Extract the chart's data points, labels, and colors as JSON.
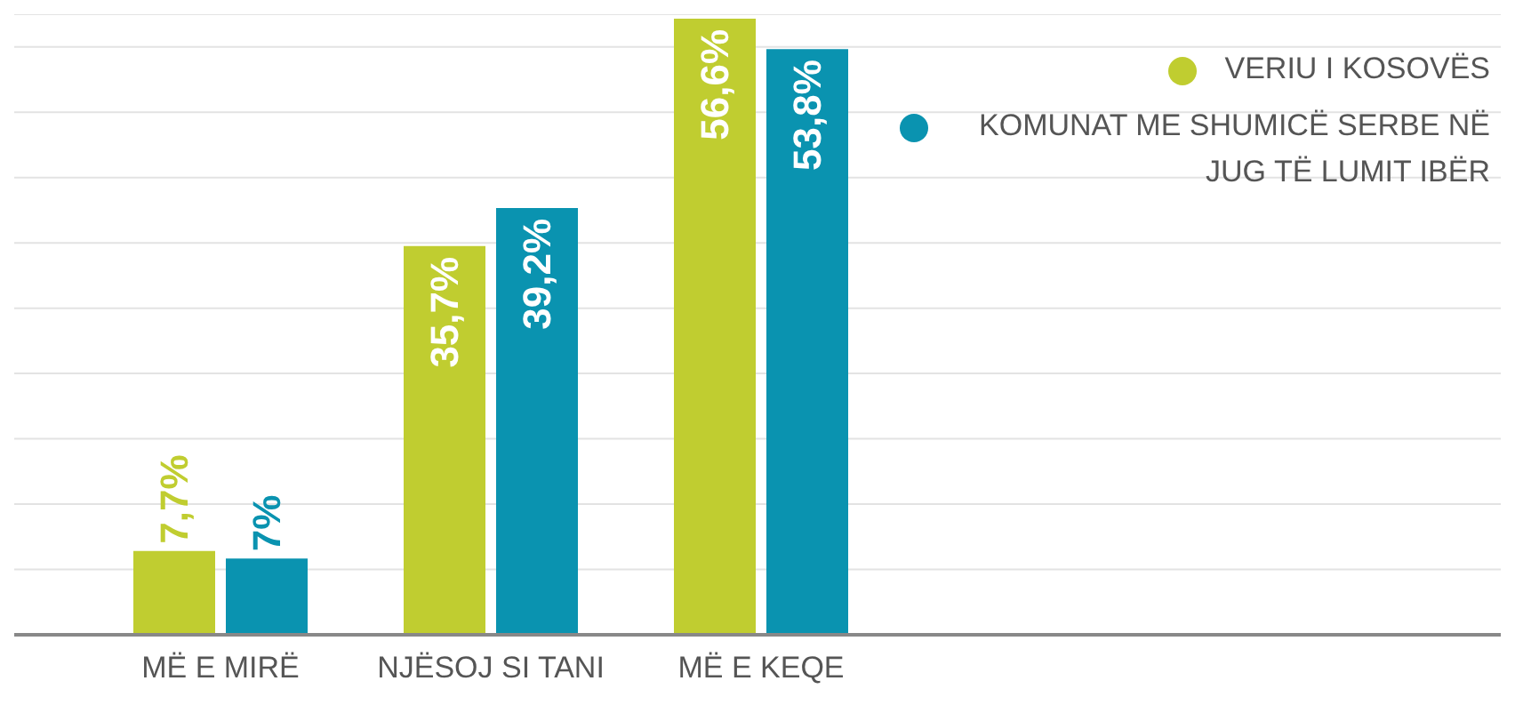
{
  "chart_data": {
    "type": "bar",
    "categories": [
      "MË E MIRË",
      "NJËSOJ SI TANI",
      "MË E KEQE"
    ],
    "series": [
      {
        "name": "VERIU I KOSOVËS",
        "color": "#c0cd30",
        "values": [
          7.7,
          35.7,
          56.6
        ],
        "value_labels": [
          "7,7%",
          "35,7%",
          "56,6%"
        ]
      },
      {
        "name": "KOMUNAT ME SHUMICË SERBE NË JUG TË LUMIT IBËR",
        "color": "#0a93b0",
        "values": [
          7,
          39.2,
          53.8
        ],
        "value_labels": [
          "7%",
          "39,2%",
          "53,8%"
        ]
      }
    ],
    "ylim": [
      0,
      57
    ],
    "yticks": [
      {
        "value": 0,
        "label": null
      },
      {
        "value": 6,
        "label": null
      },
      {
        "value": 12,
        "label": null
      },
      {
        "value": 18,
        "label": null
      },
      {
        "value": 24,
        "label": null
      },
      {
        "value": 30,
        "label": null
      },
      {
        "value": 36,
        "label": null
      },
      {
        "value": 42,
        "label": null
      },
      {
        "value": 48,
        "label": null
      },
      {
        "value": 54,
        "label": null
      }
    ],
    "tick_labels": "x",
    "grid": "y",
    "legend": "top right"
  }
}
